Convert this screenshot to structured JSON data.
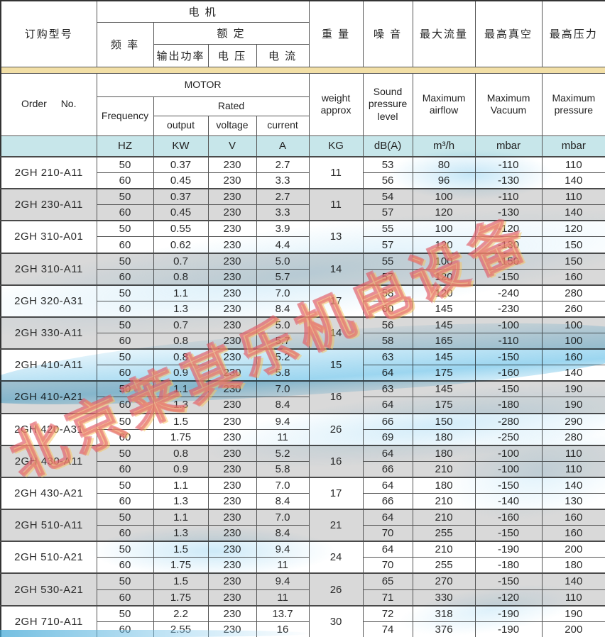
{
  "header": {
    "cn": {
      "order": "订购型号",
      "motor": "电  机",
      "frequency": "频  率",
      "rated": "额  定",
      "output": "输出功率",
      "voltage": "电  压",
      "current": "电  流",
      "weight": "重  量",
      "noise": "噪  音",
      "max_airflow": "最大流量",
      "max_vacuum": "最高真空",
      "max_pressure": "最高压力"
    },
    "en": {
      "order": "Order No.",
      "motor": "MOTOR",
      "frequency": "Frequency",
      "rated": "Rated",
      "output": "output",
      "voltage": "voltage",
      "current": "current",
      "weight": "weight\napprox",
      "noise": "Sound\npressure\nlevel",
      "max_airflow": "Maximum\nairflow",
      "max_vacuum": "Maximum\nVacuum",
      "max_pressure": "Maximum\npressure"
    },
    "units": {
      "blank": "",
      "hz": "HZ",
      "kw": "KW",
      "v": "V",
      "a": "A",
      "kg": "KG",
      "db": "dB(A)",
      "flow": "m³/h",
      "vac": "mbar",
      "press": "mbar"
    }
  },
  "rows": [
    {
      "model": "2GH 210-A11",
      "weight": "11",
      "sub": [
        {
          "hz": "50",
          "kw": "0.37",
          "v": "230",
          "a": "2.7",
          "db": "53",
          "flow": "80",
          "vac": "-110",
          "press": "110"
        },
        {
          "hz": "60",
          "kw": "0.45",
          "v": "230",
          "a": "3.3",
          "db": "56",
          "flow": "96",
          "vac": "-130",
          "press": "140"
        }
      ]
    },
    {
      "model": "2GH 230-A11",
      "weight": "11",
      "sub": [
        {
          "hz": "50",
          "kw": "0.37",
          "v": "230",
          "a": "2.7",
          "db": "54",
          "flow": "100",
          "vac": "-110",
          "press": "110"
        },
        {
          "hz": "60",
          "kw": "0.45",
          "v": "230",
          "a": "3.3",
          "db": "57",
          "flow": "120",
          "vac": "-130",
          "press": "140"
        }
      ]
    },
    {
      "model": "2GH 310-A01",
      "weight": "13",
      "sub": [
        {
          "hz": "50",
          "kw": "0.55",
          "v": "230",
          "a": "3.9",
          "db": "55",
          "flow": "100",
          "vac": "-120",
          "press": "120"
        },
        {
          "hz": "60",
          "kw": "0.62",
          "v": "230",
          "a": "4.4",
          "db": "57",
          "flow": "120",
          "vac": "-130",
          "press": "150"
        }
      ]
    },
    {
      "model": "2GH 310-A11",
      "weight": "14",
      "sub": [
        {
          "hz": "50",
          "kw": "0.7",
          "v": "230",
          "a": "5.0",
          "db": "55",
          "flow": "100",
          "vac": "-150",
          "press": "150"
        },
        {
          "hz": "60",
          "kw": "0.8",
          "v": "230",
          "a": "5.7",
          "db": "57",
          "flow": "120",
          "vac": "-150",
          "press": "160"
        }
      ]
    },
    {
      "model": "2GH 320-A31",
      "weight": "17",
      "sub": [
        {
          "hz": "50",
          "kw": "1.1",
          "v": "230",
          "a": "7.0",
          "db": "58",
          "flow": "120",
          "vac": "-240",
          "press": "280"
        },
        {
          "hz": "60",
          "kw": "1.3",
          "v": "230",
          "a": "8.4",
          "db": "60",
          "flow": "145",
          "vac": "-230",
          "press": "260"
        }
      ]
    },
    {
      "model": "2GH 330-A11",
      "weight": "14",
      "sub": [
        {
          "hz": "50",
          "kw": "0.7",
          "v": "230",
          "a": "5.0",
          "db": "56",
          "flow": "145",
          "vac": "-100",
          "press": "100"
        },
        {
          "hz": "60",
          "kw": "0.8",
          "v": "230",
          "a": "5.7",
          "db": "58",
          "flow": "165",
          "vac": "-110",
          "press": "100"
        }
      ]
    },
    {
      "model": "2GH 410-A11",
      "weight": "15",
      "sub": [
        {
          "hz": "50",
          "kw": "0.8",
          "v": "230",
          "a": "5.2",
          "db": "63",
          "flow": "145",
          "vac": "-150",
          "press": "160"
        },
        {
          "hz": "60",
          "kw": "0.9",
          "v": "230",
          "a": "5.8",
          "db": "64",
          "flow": "175",
          "vac": "-160",
          "press": "140"
        }
      ]
    },
    {
      "model": "2GH 410-A21",
      "weight": "16",
      "sub": [
        {
          "hz": "50",
          "kw": "1.1",
          "v": "230",
          "a": "7.0",
          "db": "63",
          "flow": "145",
          "vac": "-150",
          "press": "190"
        },
        {
          "hz": "60",
          "kw": "1.3",
          "v": "230",
          "a": "8.4",
          "db": "64",
          "flow": "175",
          "vac": "-180",
          "press": "190"
        }
      ]
    },
    {
      "model": "2GH 420-A31",
      "weight": "26",
      "sub": [
        {
          "hz": "50",
          "kw": "1.5",
          "v": "230",
          "a": "9.4",
          "db": "66",
          "flow": "150",
          "vac": "-280",
          "press": "290"
        },
        {
          "hz": "60",
          "kw": "1.75",
          "v": "230",
          "a": "11",
          "db": "69",
          "flow": "180",
          "vac": "-250",
          "press": "280"
        }
      ]
    },
    {
      "model": "2GH 430-A11",
      "weight": "16",
      "sub": [
        {
          "hz": "50",
          "kw": "0.8",
          "v": "230",
          "a": "5.2",
          "db": "64",
          "flow": "180",
          "vac": "-100",
          "press": "110"
        },
        {
          "hz": "60",
          "kw": "0.9",
          "v": "230",
          "a": "5.8",
          "db": "66",
          "flow": "210",
          "vac": "-100",
          "press": "110"
        }
      ]
    },
    {
      "model": "2GH 430-A21",
      "weight": "17",
      "sub": [
        {
          "hz": "50",
          "kw": "1.1",
          "v": "230",
          "a": "7.0",
          "db": "64",
          "flow": "180",
          "vac": "-150",
          "press": "140"
        },
        {
          "hz": "60",
          "kw": "1.3",
          "v": "230",
          "a": "8.4",
          "db": "66",
          "flow": "210",
          "vac": "-140",
          "press": "130"
        }
      ]
    },
    {
      "model": "2GH 510-A11",
      "weight": "21",
      "sub": [
        {
          "hz": "50",
          "kw": "1.1",
          "v": "230",
          "a": "7.0",
          "db": "64",
          "flow": "210",
          "vac": "-160",
          "press": "160"
        },
        {
          "hz": "60",
          "kw": "1.3",
          "v": "230",
          "a": "8.4",
          "db": "70",
          "flow": "255",
          "vac": "-150",
          "press": "160"
        }
      ]
    },
    {
      "model": "2GH 510-A21",
      "weight": "24",
      "sub": [
        {
          "hz": "50",
          "kw": "1.5",
          "v": "230",
          "a": "9.4",
          "db": "64",
          "flow": "210",
          "vac": "-190",
          "press": "200"
        },
        {
          "hz": "60",
          "kw": "1.75",
          "v": "230",
          "a": "11",
          "db": "70",
          "flow": "255",
          "vac": "-180",
          "press": "180"
        }
      ]
    },
    {
      "model": "2GH 530-A21",
      "weight": "26",
      "sub": [
        {
          "hz": "50",
          "kw": "1.5",
          "v": "230",
          "a": "9.4",
          "db": "65",
          "flow": "270",
          "vac": "-150",
          "press": "140"
        },
        {
          "hz": "60",
          "kw": "1.75",
          "v": "230",
          "a": "11",
          "db": "71",
          "flow": "330",
          "vac": "-120",
          "press": "110"
        }
      ]
    },
    {
      "model": "2GH 710-A11",
      "weight": "30",
      "sub": [
        {
          "hz": "50",
          "kw": "2.2",
          "v": "230",
          "a": "13.7",
          "db": "72",
          "flow": "318",
          "vac": "-190",
          "press": "190"
        },
        {
          "hz": "60",
          "kw": "2.55",
          "v": "230",
          "a": "16",
          "db": "74",
          "flow": "376",
          "vac": "-190",
          "press": "200"
        }
      ]
    }
  ],
  "watermark": {
    "text": "北京莱其乐机电设备"
  },
  "colors": {
    "units_row_bg": "#c7e6ea",
    "divider_band": "#f2dfa6",
    "row_alt_bg": "#d9d9d9",
    "wave_blue": "#7ec9e8",
    "watermark_pink": "#e05a64",
    "watermark_yellow": "#f5c04a"
  }
}
